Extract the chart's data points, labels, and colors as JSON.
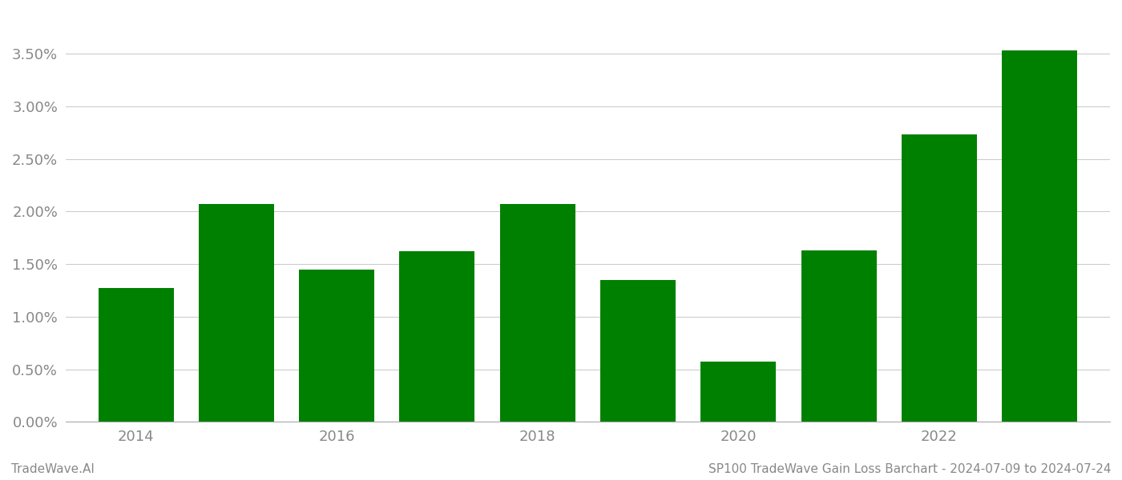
{
  "years": [
    2014,
    2015,
    2016,
    2017,
    2018,
    2019,
    2020,
    2021,
    2022,
    2023
  ],
  "values": [
    0.0127,
    0.0207,
    0.0145,
    0.0162,
    0.0207,
    0.0135,
    0.0057,
    0.0163,
    0.0273,
    0.0353
  ],
  "bar_color": "#008000",
  "background_color": "#ffffff",
  "title": "SP100 TradeWave Gain Loss Barchart - 2024-07-09 to 2024-07-24",
  "footer_left": "TradeWave.AI",
  "ylim": [
    0,
    0.0385
  ],
  "ytick_values": [
    0.0,
    0.005,
    0.01,
    0.015,
    0.02,
    0.025,
    0.03,
    0.035
  ],
  "grid_color": "#cccccc",
  "axis_label_color": "#888888",
  "footer_color": "#888888",
  "bar_width": 0.75
}
